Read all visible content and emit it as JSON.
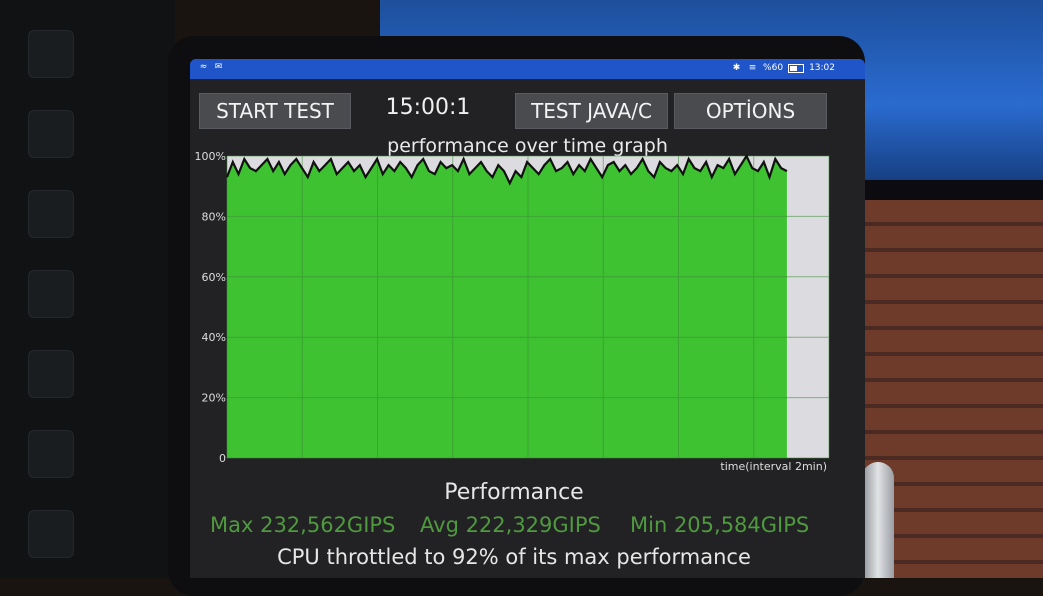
{
  "status_bar": {
    "icons": [
      "wifi-icon",
      "mail-icon",
      "bluetooth-icon",
      "vibrate-icon"
    ],
    "battery_text": "%60",
    "time": "13:02"
  },
  "toolbar": {
    "start_label": "START TEST",
    "timer": "15:00:1",
    "java_label": "TEST JAVA/C",
    "options_label": "OPTİONS"
  },
  "chart_data": {
    "type": "area",
    "title": "performance over time graph",
    "xlabel": "time(interval 2min)",
    "ylabel": "",
    "y_ticks": [
      "100%",
      "80%",
      "60%",
      "40%",
      "20%",
      "0"
    ],
    "ylim": [
      0,
      100
    ],
    "xlim": [
      0,
      15.9
    ],
    "grid": true,
    "fill_color": "#3fc232",
    "line_color": "#111111",
    "values": [
      93,
      98,
      94,
      99,
      96,
      95,
      97,
      99,
      95,
      98,
      94,
      97,
      99,
      96,
      93,
      98,
      95,
      97,
      99,
      94,
      96,
      98,
      95,
      97,
      93,
      96,
      99,
      94,
      97,
      95,
      98,
      96,
      93,
      97,
      99,
      95,
      94,
      98,
      96,
      97,
      95,
      99,
      94,
      96,
      98,
      95,
      93,
      97,
      95,
      91,
      95,
      93,
      98,
      96,
      94,
      97,
      99,
      95,
      96,
      98,
      94,
      97,
      95,
      99,
      96,
      93,
      97,
      98,
      95,
      97,
      94,
      96,
      99,
      95,
      93,
      98,
      96,
      95,
      97,
      94,
      99,
      96,
      95,
      98,
      93,
      97,
      96,
      99,
      94,
      97,
      100,
      96,
      95,
      98,
      93,
      99,
      96,
      95
    ]
  },
  "performance": {
    "title": "Performance",
    "max": "Max 232,562GIPS",
    "avg": "Avg 222,329GIPS",
    "min": "Min 205,584GIPS",
    "throttle_text": "CPU throttled to 92% of its max performance"
  }
}
